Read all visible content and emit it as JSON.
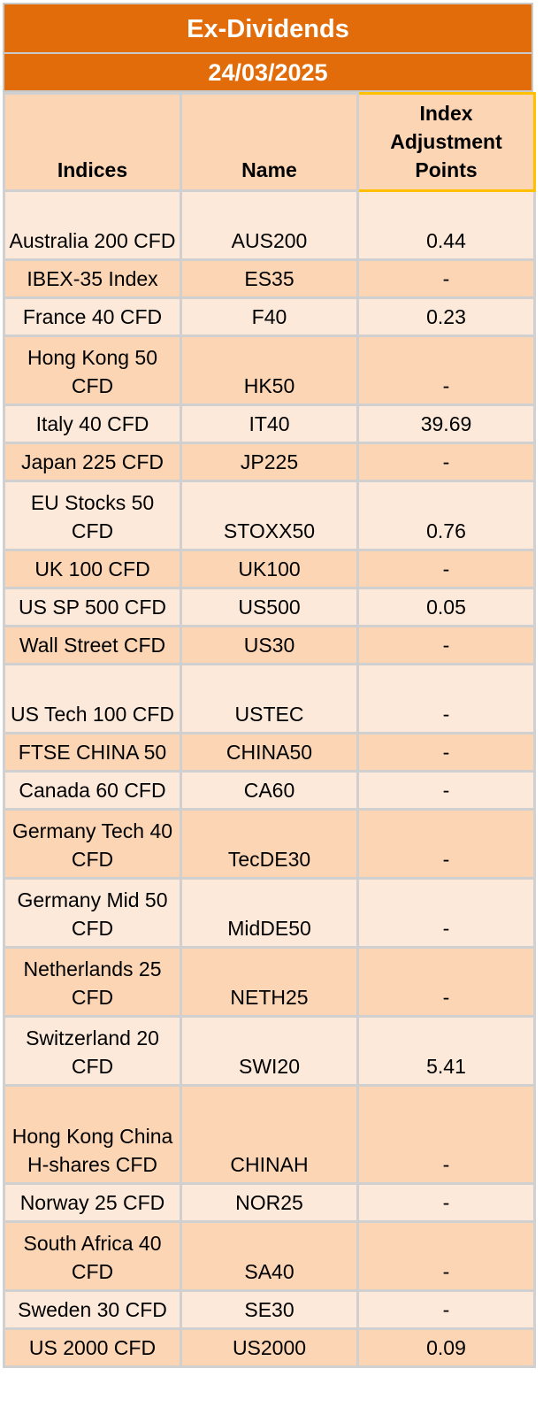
{
  "title": "Ex-Dividends",
  "date": "24/03/2025",
  "columns": [
    "Indices",
    "Name",
    "Index Adjustment Points"
  ],
  "rows": [
    {
      "index": "Australia 200 CFD",
      "name": "AUS200",
      "points": "0.44"
    },
    {
      "index": "IBEX-35 Index",
      "name": "ES35",
      "points": "-"
    },
    {
      "index": "France 40 CFD",
      "name": "F40",
      "points": "0.23"
    },
    {
      "index": "Hong Kong 50 CFD",
      "name": "HK50",
      "points": "-"
    },
    {
      "index": "Italy 40 CFD",
      "name": "IT40",
      "points": "39.69"
    },
    {
      "index": "Japan 225 CFD",
      "name": "JP225",
      "points": "-"
    },
    {
      "index": "EU Stocks 50 CFD",
      "name": "STOXX50",
      "points": "0.76"
    },
    {
      "index": "UK 100 CFD",
      "name": "UK100",
      "points": "-"
    },
    {
      "index": "US SP 500 CFD",
      "name": "US500",
      "points": "0.05"
    },
    {
      "index": "Wall Street CFD",
      "name": "US30",
      "points": "-"
    },
    {
      "index": "US Tech 100 CFD",
      "name": "USTEC",
      "points": "-"
    },
    {
      "index": "FTSE CHINA 50",
      "name": "CHINA50",
      "points": "-"
    },
    {
      "index": "Canada 60 CFD",
      "name": "CA60",
      "points": "-"
    },
    {
      "index": "Germany Tech 40 CFD",
      "name": "TecDE30",
      "points": "-"
    },
    {
      "index": "Germany Mid 50 CFD",
      "name": "MidDE50",
      "points": "-"
    },
    {
      "index": "Netherlands 25 CFD",
      "name": "NETH25",
      "points": "-"
    },
    {
      "index": "Switzerland 20 CFD",
      "name": "SWI20",
      "points": "5.41"
    },
    {
      "index": "Hong Kong China H-shares CFD",
      "name": "CHINAH",
      "points": "-"
    },
    {
      "index": "Norway 25 CFD",
      "name": "NOR25",
      "points": "-"
    },
    {
      "index": "South Africa 40 CFD",
      "name": "SA40",
      "points": "-"
    },
    {
      "index": "Sweden 30 CFD",
      "name": "SE30",
      "points": "-"
    },
    {
      "index": "US 2000 CFD",
      "name": "US2000",
      "points": "0.09"
    }
  ],
  "colors": {
    "banner": "#e36c0a",
    "header": "#fcd5b4",
    "row_light": "#fde9d9",
    "row_dark": "#fcd5b4",
    "highlight_border": "#ffc000"
  }
}
